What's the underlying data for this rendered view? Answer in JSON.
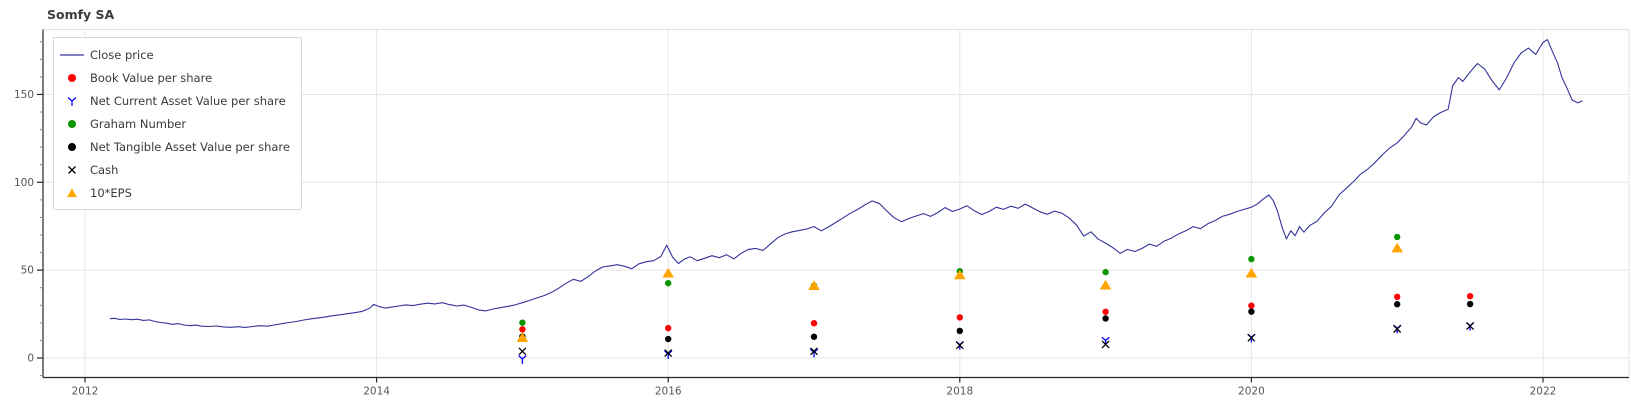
{
  "chart_data": {
    "type": "line",
    "title": "Somfy SA",
    "legend_position": "top-left",
    "x_axis": {
      "ticks": [
        2012,
        2014,
        2016,
        2018,
        2020,
        2022
      ],
      "range": [
        2011.71,
        2022.58
      ],
      "gridlines": true
    },
    "y_axis": {
      "ticks": [
        0,
        50,
        100,
        150
      ],
      "minor_tick_step": 10,
      "range": [
        -11,
        187
      ],
      "gridlines": true
    },
    "style": {
      "grid_color": "#e6e6e6",
      "axis_color": "#262626",
      "light_spine_color": "#e0e0e0",
      "tick_label_color": "#575757",
      "title_color": "#3c3c3c"
    },
    "series": [
      {
        "name": "Close price",
        "type": "line",
        "marker": "line",
        "color": "#333399",
        "points": [
          [
            2012.17,
            22.3
          ],
          [
            2012.2,
            22.6
          ],
          [
            2012.24,
            21.9
          ],
          [
            2012.28,
            22.2
          ],
          [
            2012.32,
            21.8
          ],
          [
            2012.36,
            22.1
          ],
          [
            2012.4,
            21.4
          ],
          [
            2012.44,
            21.7
          ],
          [
            2012.48,
            20.8
          ],
          [
            2012.52,
            20.2
          ],
          [
            2012.56,
            19.8
          ],
          [
            2012.6,
            19.2
          ],
          [
            2012.64,
            19.6
          ],
          [
            2012.68,
            18.8
          ],
          [
            2012.72,
            18.4
          ],
          [
            2012.76,
            18.7
          ],
          [
            2012.8,
            18.1
          ],
          [
            2012.85,
            17.9
          ],
          [
            2012.9,
            18.2
          ],
          [
            2012.95,
            17.7
          ],
          [
            2013.0,
            17.5
          ],
          [
            2013.05,
            17.8
          ],
          [
            2013.1,
            17.4
          ],
          [
            2013.15,
            17.9
          ],
          [
            2013.2,
            18.4
          ],
          [
            2013.25,
            18.1
          ],
          [
            2013.3,
            18.8
          ],
          [
            2013.35,
            19.5
          ],
          [
            2013.4,
            20.2
          ],
          [
            2013.45,
            20.8
          ],
          [
            2013.5,
            21.6
          ],
          [
            2013.55,
            22.3
          ],
          [
            2013.6,
            22.8
          ],
          [
            2013.65,
            23.4
          ],
          [
            2013.7,
            24.1
          ],
          [
            2013.75,
            24.6
          ],
          [
            2013.8,
            25.2
          ],
          [
            2013.85,
            25.8
          ],
          [
            2013.9,
            26.5
          ],
          [
            2013.95,
            28.2
          ],
          [
            2013.98,
            30.5
          ],
          [
            2014.02,
            29.2
          ],
          [
            2014.06,
            28.4
          ],
          [
            2014.1,
            28.9
          ],
          [
            2014.15,
            29.6
          ],
          [
            2014.2,
            30.2
          ],
          [
            2014.25,
            29.8
          ],
          [
            2014.3,
            30.6
          ],
          [
            2014.35,
            31.2
          ],
          [
            2014.4,
            30.8
          ],
          [
            2014.45,
            31.5
          ],
          [
            2014.5,
            30.4
          ],
          [
            2014.55,
            29.6
          ],
          [
            2014.6,
            30.1
          ],
          [
            2014.65,
            28.8
          ],
          [
            2014.7,
            27.4
          ],
          [
            2014.75,
            26.8
          ],
          [
            2014.8,
            27.9
          ],
          [
            2014.85,
            28.6
          ],
          [
            2014.9,
            29.4
          ],
          [
            2014.95,
            30.2
          ],
          [
            2015.0,
            31.5
          ],
          [
            2015.05,
            32.8
          ],
          [
            2015.1,
            34.2
          ],
          [
            2015.15,
            35.6
          ],
          [
            2015.2,
            37.4
          ],
          [
            2015.25,
            39.8
          ],
          [
            2015.3,
            42.5
          ],
          [
            2015.35,
            44.8
          ],
          [
            2015.4,
            43.6
          ],
          [
            2015.45,
            46.2
          ],
          [
            2015.5,
            49.5
          ],
          [
            2015.55,
            51.8
          ],
          [
            2015.6,
            52.4
          ],
          [
            2015.65,
            53.1
          ],
          [
            2015.7,
            52.2
          ],
          [
            2015.75,
            50.8
          ],
          [
            2015.8,
            53.6
          ],
          [
            2015.85,
            54.8
          ],
          [
            2015.9,
            55.4
          ],
          [
            2015.95,
            57.8
          ],
          [
            2015.99,
            64.2
          ],
          [
            2016.03,
            57.4
          ],
          [
            2016.07,
            53.8
          ],
          [
            2016.11,
            56.2
          ],
          [
            2016.15,
            57.6
          ],
          [
            2016.2,
            55.4
          ],
          [
            2016.25,
            56.8
          ],
          [
            2016.3,
            58.2
          ],
          [
            2016.35,
            57.1
          ],
          [
            2016.4,
            58.8
          ],
          [
            2016.45,
            56.4
          ],
          [
            2016.5,
            59.6
          ],
          [
            2016.55,
            61.8
          ],
          [
            2016.6,
            62.4
          ],
          [
            2016.65,
            61.2
          ],
          [
            2016.7,
            64.8
          ],
          [
            2016.75,
            68.4
          ],
          [
            2016.8,
            70.6
          ],
          [
            2016.85,
            71.8
          ],
          [
            2016.9,
            72.6
          ],
          [
            2016.95,
            73.4
          ],
          [
            2017.0,
            74.8
          ],
          [
            2017.05,
            72.4
          ],
          [
            2017.1,
            74.6
          ],
          [
            2017.15,
            77.2
          ],
          [
            2017.2,
            79.8
          ],
          [
            2017.25,
            82.4
          ],
          [
            2017.3,
            84.6
          ],
          [
            2017.35,
            87.2
          ],
          [
            2017.4,
            89.4
          ],
          [
            2017.45,
            87.8
          ],
          [
            2017.5,
            83.6
          ],
          [
            2017.55,
            79.8
          ],
          [
            2017.6,
            77.6
          ],
          [
            2017.65,
            79.4
          ],
          [
            2017.7,
            80.8
          ],
          [
            2017.75,
            82.2
          ],
          [
            2017.8,
            80.6
          ],
          [
            2017.85,
            82.8
          ],
          [
            2017.9,
            85.6
          ],
          [
            2017.95,
            83.4
          ],
          [
            2018.0,
            84.8
          ],
          [
            2018.05,
            86.6
          ],
          [
            2018.1,
            83.8
          ],
          [
            2018.15,
            81.6
          ],
          [
            2018.2,
            83.4
          ],
          [
            2018.25,
            85.8
          ],
          [
            2018.3,
            84.6
          ],
          [
            2018.35,
            86.4
          ],
          [
            2018.4,
            85.2
          ],
          [
            2018.45,
            87.6
          ],
          [
            2018.5,
            85.4
          ],
          [
            2018.55,
            83.2
          ],
          [
            2018.6,
            81.8
          ],
          [
            2018.65,
            83.6
          ],
          [
            2018.7,
            82.4
          ],
          [
            2018.75,
            79.6
          ],
          [
            2018.8,
            75.8
          ],
          [
            2018.85,
            69.4
          ],
          [
            2018.9,
            71.8
          ],
          [
            2018.95,
            67.6
          ],
          [
            2019.0,
            65.4
          ],
          [
            2019.05,
            62.8
          ],
          [
            2019.1,
            59.6
          ],
          [
            2019.15,
            61.8
          ],
          [
            2019.2,
            60.6
          ],
          [
            2019.25,
            62.4
          ],
          [
            2019.3,
            64.8
          ],
          [
            2019.35,
            63.6
          ],
          [
            2019.4,
            66.4
          ],
          [
            2019.45,
            68.2
          ],
          [
            2019.5,
            70.6
          ],
          [
            2019.55,
            72.4
          ],
          [
            2019.6,
            74.8
          ],
          [
            2019.65,
            73.6
          ],
          [
            2019.7,
            76.4
          ],
          [
            2019.75,
            78.2
          ],
          [
            2019.8,
            80.6
          ],
          [
            2019.85,
            81.8
          ],
          [
            2019.9,
            83.4
          ],
          [
            2019.95,
            84.6
          ],
          [
            2020.0,
            85.8
          ],
          [
            2020.04,
            87.6
          ],
          [
            2020.08,
            90.4
          ],
          [
            2020.12,
            92.8
          ],
          [
            2020.15,
            89.6
          ],
          [
            2020.18,
            83.4
          ],
          [
            2020.21,
            74.6
          ],
          [
            2020.24,
            67.8
          ],
          [
            2020.27,
            72.4
          ],
          [
            2020.3,
            69.6
          ],
          [
            2020.33,
            74.8
          ],
          [
            2020.36,
            71.6
          ],
          [
            2020.4,
            75.4
          ],
          [
            2020.45,
            77.8
          ],
          [
            2020.5,
            82.6
          ],
          [
            2020.55,
            86.4
          ],
          [
            2020.6,
            92.8
          ],
          [
            2020.65,
            96.6
          ],
          [
            2020.7,
            100.4
          ],
          [
            2020.75,
            104.8
          ],
          [
            2020.8,
            107.6
          ],
          [
            2020.85,
            111.4
          ],
          [
            2020.9,
            115.8
          ],
          [
            2020.95,
            119.6
          ],
          [
            2021.0,
            122.4
          ],
          [
            2021.05,
            126.8
          ],
          [
            2021.1,
            131.6
          ],
          [
            2021.13,
            136.4
          ],
          [
            2021.16,
            133.8
          ],
          [
            2021.2,
            132.6
          ],
          [
            2021.25,
            137.4
          ],
          [
            2021.3,
            139.8
          ],
          [
            2021.35,
            141.6
          ],
          [
            2021.38,
            154.8
          ],
          [
            2021.42,
            159.6
          ],
          [
            2021.45,
            157.4
          ],
          [
            2021.5,
            162.8
          ],
          [
            2021.55,
            167.6
          ],
          [
            2021.6,
            164.4
          ],
          [
            2021.65,
            157.8
          ],
          [
            2021.7,
            152.6
          ],
          [
            2021.75,
            159.4
          ],
          [
            2021.8,
            167.8
          ],
          [
            2021.85,
            173.6
          ],
          [
            2021.9,
            176.4
          ],
          [
            2021.95,
            172.8
          ],
          [
            2022.0,
            179.6
          ],
          [
            2022.03,
            181.2
          ],
          [
            2022.06,
            175.4
          ],
          [
            2022.1,
            167.8
          ],
          [
            2022.13,
            159.6
          ],
          [
            2022.16,
            154.4
          ],
          [
            2022.2,
            146.8
          ],
          [
            2022.24,
            145.2
          ],
          [
            2022.27,
            146.4
          ]
        ]
      },
      {
        "name": "Book Value per share",
        "type": "scatter",
        "marker": "circle",
        "color": "#ff0000",
        "points": [
          [
            2015,
            16.3
          ],
          [
            2016,
            17.0
          ],
          [
            2017,
            19.8
          ],
          [
            2018,
            23.1
          ],
          [
            2019,
            26.3
          ],
          [
            2020,
            29.8
          ],
          [
            2021,
            34.8
          ],
          [
            2021.5,
            35.2
          ]
        ]
      },
      {
        "name": "Net Current Asset Value per share",
        "type": "scatter",
        "marker": "tri_down",
        "color": "#0000ff",
        "points": [
          [
            2015,
            -0.5
          ],
          [
            2016,
            2.3
          ],
          [
            2017,
            3.2
          ],
          [
            2018,
            7.6
          ],
          [
            2019,
            10.0
          ],
          [
            2020,
            11.8
          ],
          [
            2021,
            16.9
          ],
          [
            2021.5,
            18.4
          ]
        ]
      },
      {
        "name": "Graham Number",
        "type": "scatter",
        "marker": "circle",
        "color": "#0a9400",
        "points": [
          [
            2015,
            20.1
          ],
          [
            2016,
            42.6
          ],
          [
            2017,
            41.2
          ],
          [
            2018,
            49.4
          ],
          [
            2019,
            48.9
          ],
          [
            2020,
            56.3
          ],
          [
            2021,
            68.9
          ]
        ]
      },
      {
        "name": "Net Tangible Asset Value per share",
        "type": "scatter",
        "marker": "circle",
        "color": "#000000",
        "points": [
          [
            2015,
            12.2
          ],
          [
            2016,
            10.8
          ],
          [
            2017,
            12.1
          ],
          [
            2018,
            15.4
          ],
          [
            2019,
            22.5
          ],
          [
            2020,
            26.4
          ],
          [
            2021,
            30.6
          ],
          [
            2021.5,
            30.7
          ]
        ]
      },
      {
        "name": "Cash",
        "type": "scatter",
        "marker": "x",
        "color": "#000000",
        "points": [
          [
            2015,
            3.8
          ],
          [
            2016,
            2.8
          ],
          [
            2017,
            3.8
          ],
          [
            2018,
            7.2
          ],
          [
            2019,
            7.7
          ],
          [
            2020,
            11.5
          ],
          [
            2021,
            16.5
          ],
          [
            2021.5,
            18.2
          ]
        ]
      },
      {
        "name": "10*EPS",
        "type": "scatter",
        "marker": "triangle_up",
        "color": "#ffa500",
        "points": [
          [
            2015,
            11.5
          ],
          [
            2016,
            48.2
          ],
          [
            2017,
            41.1
          ],
          [
            2018,
            47.2
          ],
          [
            2019,
            41.4
          ],
          [
            2020,
            48.2
          ],
          [
            2021,
            62.5
          ]
        ]
      }
    ]
  }
}
